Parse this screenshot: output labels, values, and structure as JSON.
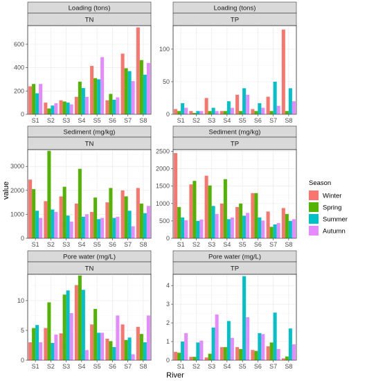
{
  "chart_data": {
    "type": "bar",
    "xlabel": "River",
    "ylabel": "value",
    "categories": [
      "S1",
      "S2",
      "S3",
      "S4",
      "S5",
      "S6",
      "S7",
      "S8"
    ],
    "legend": {
      "title": "Season",
      "position": "right",
      "entries": [
        {
          "name": "Winter",
          "color": "#F8766D"
        },
        {
          "name": "Spring",
          "color": "#53B400"
        },
        {
          "name": "Summer",
          "color": "#00C0C8"
        },
        {
          "name": "Autumn",
          "color": "#E58AFF"
        }
      ]
    },
    "panels": [
      {
        "row_label": "Loading (tons)",
        "col_label": "TN",
        "ylim": [
          0,
          760
        ],
        "yticks": [
          0,
          200,
          400,
          600
        ],
        "series": [
          {
            "name": "Winter",
            "values": [
              240,
              100,
              120,
              150,
              415,
              120,
              520,
              745
            ]
          },
          {
            "name": "Spring",
            "values": [
              260,
              50,
              110,
              280,
              310,
              175,
              395,
              465
            ]
          },
          {
            "name": "Summer",
            "values": [
              180,
              75,
              100,
              225,
              300,
              125,
              370,
              340
            ]
          },
          {
            "name": "Autumn",
            "values": [
              260,
              95,
              85,
              150,
              490,
              145,
              285,
              440
            ]
          }
        ]
      },
      {
        "row_label": "Loading (tons)",
        "col_label": "TP",
        "ylim": [
          0,
          136
        ],
        "yticks": [
          0,
          50,
          100
        ],
        "series": [
          {
            "name": "Winter",
            "values": [
              8,
              5,
              25,
              5,
              30,
              8,
              27,
              130
            ]
          },
          {
            "name": "Spring",
            "values": [
              5,
              2,
              5,
              5,
              5,
              5,
              5,
              5
            ]
          },
          {
            "name": "Summer",
            "values": [
              17,
              5,
              10,
              20,
              40,
              17,
              50,
              40
            ]
          },
          {
            "name": "Autumn",
            "values": [
              10,
              5,
              5,
              10,
              30,
              10,
              13,
              20
            ]
          }
        ]
      },
      {
        "row_label": "Sediment (mg/kg)",
        "col_label": "TN",
        "ylim": [
          0,
          3700
        ],
        "yticks": [
          0,
          1000,
          2000,
          3000
        ],
        "series": [
          {
            "name": "Winter",
            "values": [
              2450,
              1550,
              1750,
              1450,
              1100,
              1500,
              2000,
              2100
            ]
          },
          {
            "name": "Spring",
            "values": [
              2050,
              3650,
              2150,
              2900,
              1700,
              2100,
              1750,
              1450
            ]
          },
          {
            "name": "Summer",
            "values": [
              1150,
              1200,
              950,
              900,
              800,
              850,
              1150,
              1050
            ]
          },
          {
            "name": "Autumn",
            "values": [
              850,
              1100,
              700,
              1000,
              850,
              900,
              500,
              1350
            ]
          }
        ]
      },
      {
        "row_label": "Sediment (mg/kg)",
        "col_label": "TP",
        "ylim": [
          0,
          2550
        ],
        "yticks": [
          0,
          500,
          1000,
          1500,
          2000,
          2500
        ],
        "series": [
          {
            "name": "Winter",
            "values": [
              2450,
              1550,
              1800,
              1000,
              900,
              1300,
              770,
              870
            ]
          },
          {
            "name": "Spring",
            "values": [
              900,
              1650,
              1520,
              1700,
              1000,
              1300,
              330,
              700
            ]
          },
          {
            "name": "Summer",
            "values": [
              600,
              500,
              930,
              550,
              650,
              600,
              400,
              500
            ]
          },
          {
            "name": "Autumn",
            "values": [
              520,
              540,
              700,
              600,
              730,
              510,
              440,
              550
            ]
          }
        ]
      },
      {
        "row_label": "Pore water (mg/L)",
        "col_label": "TN",
        "ylim": [
          0,
          14.4
        ],
        "yticks": [
          0,
          5,
          10
        ],
        "series": [
          {
            "name": "Winter",
            "values": [
              3.0,
              5.4,
              4.5,
              12.6,
              6.0,
              3.6,
              6.0,
              5.6
            ]
          },
          {
            "name": "Spring",
            "values": [
              5.4,
              9.7,
              11.0,
              14.2,
              8.6,
              3.2,
              3.4,
              4.4
            ]
          },
          {
            "name": "Summer",
            "values": [
              5.9,
              2.9,
              11.7,
              11.8,
              4.6,
              2.2,
              3.8,
              3.0
            ]
          },
          {
            "name": "Autumn",
            "values": [
              3.0,
              4.3,
              7.9,
              1.7,
              4.6,
              7.5,
              1.0,
              7.5
            ]
          }
        ]
      },
      {
        "row_label": "Pore water (mg/L)",
        "col_label": "TP",
        "ylim": [
          0,
          4.6
        ],
        "yticks": [
          0,
          1,
          2,
          3,
          4
        ],
        "series": [
          {
            "name": "Winter",
            "values": [
              0.45,
              0.18,
              0.15,
              0.7,
              0.7,
              0.55,
              0.75,
              0.1
            ]
          },
          {
            "name": "Spring",
            "values": [
              0.4,
              0.18,
              0.35,
              0.7,
              0.6,
              0.5,
              0.95,
              0.2
            ]
          },
          {
            "name": "Summer",
            "values": [
              1.0,
              0.95,
              1.75,
              2.1,
              4.5,
              1.45,
              2.55,
              1.7
            ]
          },
          {
            "name": "Autumn",
            "values": [
              1.45,
              1.05,
              2.45,
              1.2,
              2.3,
              1.4,
              0.6,
              0.85
            ]
          }
        ]
      }
    ]
  }
}
